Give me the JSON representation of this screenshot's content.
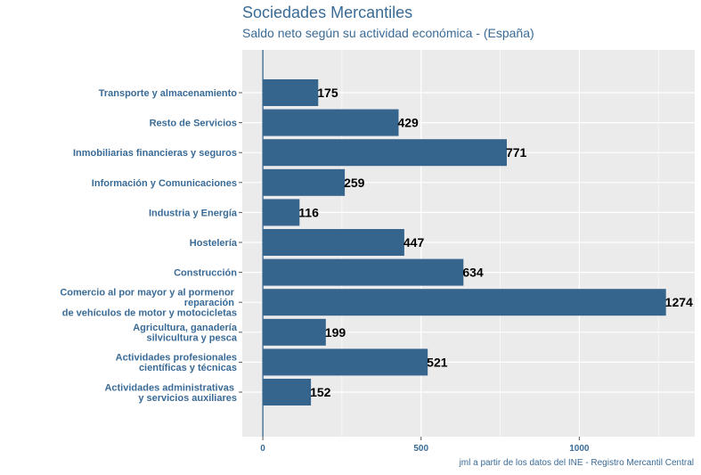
{
  "chart_data": {
    "type": "bar",
    "orientation": "horizontal",
    "title": "Sociedades Mercantiles",
    "subtitle": "Saldo neto según su actividad económica - (España)",
    "caption": "jml a partir de los datos del INE - Registro Mercantil Central",
    "categories": [
      "Transporte y almacenamiento",
      "Resto de Servicios",
      "Inmobiliarias financieras y seguros",
      "Información y Comunicaciones",
      "Industria y Energía",
      "Hostelería",
      "Construcción",
      "Comercio al por mayor y al pormenor \nreparación \nde vehículos de motor y motocicletas",
      "Agricultura, ganadería\nsilvicultura y pesca",
      "Actividades profesionales\ncientíficas y técnicas",
      "Actividades administrativas \ny servicios auxiliares"
    ],
    "values": [
      175,
      429,
      771,
      259,
      116,
      447,
      634,
      1274,
      199,
      521,
      152
    ],
    "xlim": [
      -65,
      1365
    ],
    "xticks": [
      0,
      500,
      1000
    ],
    "grid": true,
    "legend": "none",
    "colors": {
      "bar": "#35648c",
      "panel": "#ebebeb",
      "gridline": "#ffffff",
      "zero_line": "#35648c",
      "axis_text": "#3a6b96",
      "value_label": "#000000"
    }
  }
}
